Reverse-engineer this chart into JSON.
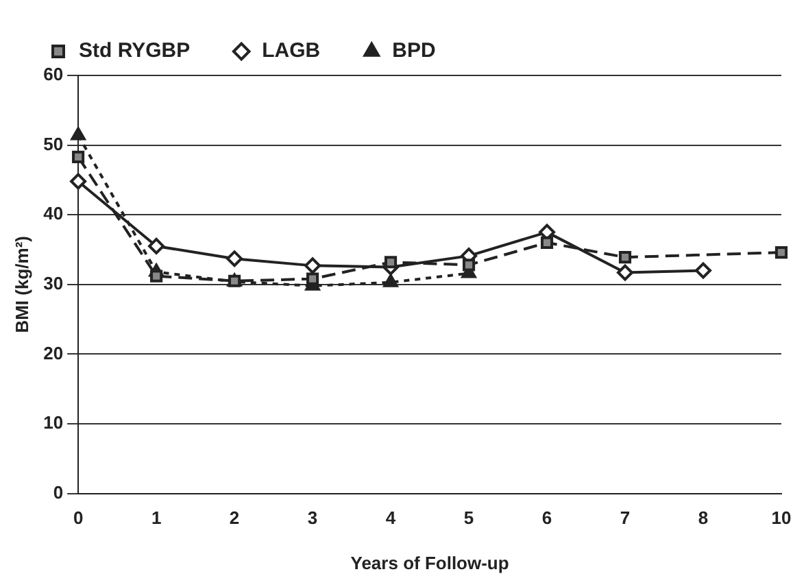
{
  "chart_data": {
    "type": "line",
    "xlabel": "Years of Follow-up",
    "ylabel": "BMI (kg/m²)",
    "categories": [
      "0",
      "1",
      "2",
      "3",
      "4",
      "5",
      "6",
      "7",
      "8",
      "10"
    ],
    "series": [
      {
        "name": "Std RYGBP",
        "color": "#222222",
        "marker": "square",
        "line_style": "dashed",
        "values": [
          48.3,
          31.2,
          30.5,
          30.8,
          33.2,
          32.8,
          36,
          33.9,
          null,
          34.6
        ]
      },
      {
        "name": "LAGB",
        "color": "#222222",
        "marker": "diamond",
        "line_style": "solid",
        "values": [
          44.8,
          35.5,
          33.7,
          32.7,
          32.5,
          34.1,
          37.5,
          31.7,
          32,
          null
        ]
      },
      {
        "name": "BPD",
        "color": "#222222",
        "marker": "triangle",
        "line_style": "dotted",
        "values": [
          51.4,
          31.8,
          30.4,
          29.8,
          30.3,
          31.6,
          null,
          null,
          null,
          null
        ]
      }
    ],
    "ylim": [
      0,
      60
    ],
    "yticks": [
      0,
      10,
      20,
      30,
      40,
      50,
      60
    ],
    "grid": "y",
    "legend": "top"
  }
}
